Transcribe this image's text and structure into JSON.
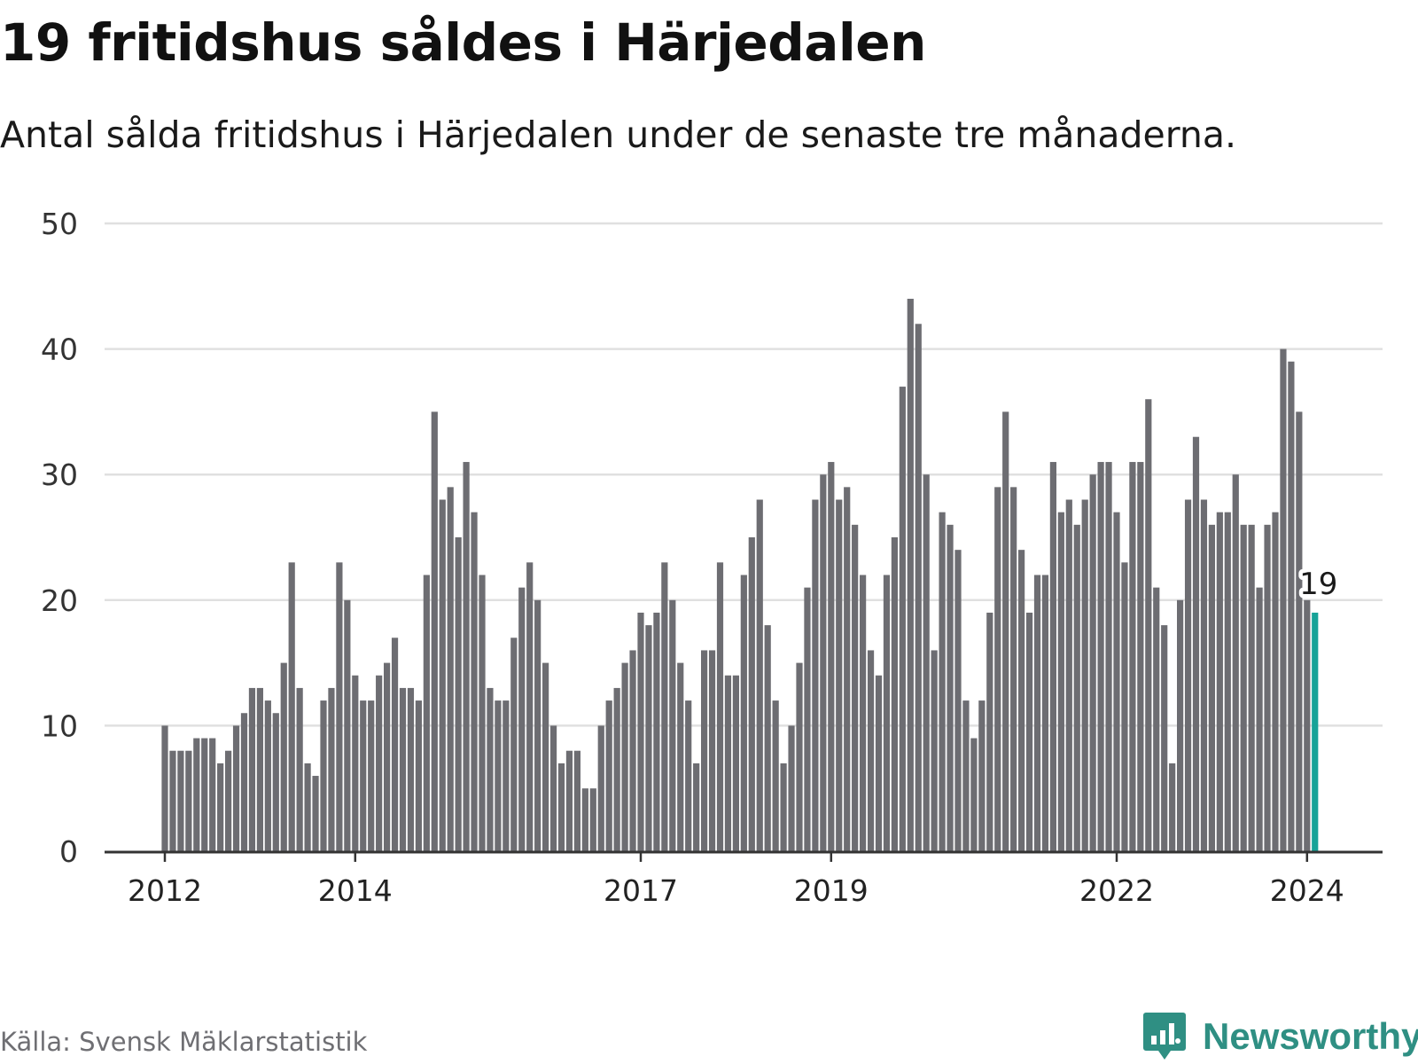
{
  "header": {
    "title": "19 fritidshus såldes i Härjedalen",
    "subtitle": "Antal sålda fritidshus i Härjedalen under de senaste tre månaderna."
  },
  "footer": {
    "source": "Källa: Svensk Mäklarstatistik",
    "brand": "Newsworthy",
    "brand_icon": "bar-chart-speech-bubble-icon"
  },
  "colors": {
    "bar": "#6d6d72",
    "highlight": "#17a398",
    "grid": "#e0e0e0",
    "axis": "#333333",
    "brand": "#2f8f83"
  },
  "chart_data": {
    "type": "bar",
    "title": "19 fritidshus såldes i Härjedalen",
    "subtitle": "Antal sålda fritidshus i Härjedalen under de senaste tre månaderna.",
    "xlabel": "",
    "ylabel": "",
    "ylim": [
      0,
      50
    ],
    "yticks": [
      0,
      10,
      20,
      30,
      40,
      50
    ],
    "grid": true,
    "x_start": "2012-01",
    "x_end": "2024-01",
    "xticks": [
      {
        "label": "2012",
        "index": 0
      },
      {
        "label": "2014",
        "index": 24
      },
      {
        "label": "2017",
        "index": 60
      },
      {
        "label": "2019",
        "index": 84
      },
      {
        "label": "2022",
        "index": 120
      },
      {
        "label": "2024",
        "index": 144
      }
    ],
    "values": [
      10,
      8,
      8,
      8,
      9,
      9,
      9,
      7,
      8,
      10,
      11,
      13,
      13,
      12,
      11,
      15,
      23,
      13,
      7,
      6,
      12,
      13,
      23,
      20,
      14,
      12,
      12,
      14,
      15,
      17,
      13,
      13,
      12,
      22,
      35,
      28,
      29,
      25,
      31,
      27,
      22,
      13,
      12,
      12,
      17,
      21,
      23,
      20,
      15,
      10,
      7,
      8,
      8,
      5,
      5,
      10,
      12,
      13,
      15,
      16,
      19,
      18,
      19,
      23,
      20,
      15,
      12,
      7,
      16,
      16,
      23,
      14,
      14,
      22,
      25,
      28,
      18,
      12,
      7,
      10,
      15,
      21,
      28,
      30,
      31,
      28,
      29,
      26,
      22,
      16,
      14,
      22,
      25,
      37,
      44,
      42,
      30,
      16,
      27,
      26,
      24,
      12,
      9,
      12,
      19,
      29,
      35,
      29,
      24,
      19,
      22,
      22,
      31,
      27,
      28,
      26,
      28,
      30,
      31,
      31,
      27,
      23,
      31,
      31,
      36,
      21,
      18,
      7,
      20,
      28,
      33,
      28,
      26,
      27,
      27,
      30,
      26,
      26,
      21,
      26,
      27,
      40,
      39,
      35,
      20,
      19
    ],
    "highlight_last": true,
    "annotation": {
      "label": "19",
      "value": 19
    }
  }
}
